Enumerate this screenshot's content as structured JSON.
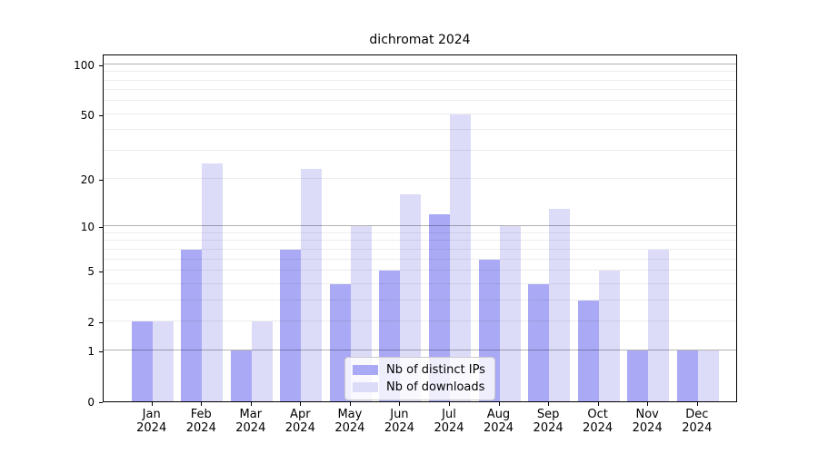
{
  "title": "dichromat 2024",
  "colors": {
    "distinct_ips": "#a9a9f5",
    "downloads": "#dcdcf9",
    "grid_strong": "rgba(0,0,0,0.30)",
    "grid_weak": "rgba(0,0,0,0.07)",
    "axis": "#000000"
  },
  "legend": {
    "items": [
      {
        "label": "Nb of distinct IPs",
        "color_key": "distinct_ips"
      },
      {
        "label": "Nb of downloads",
        "color_key": "downloads"
      }
    ]
  },
  "chart_data": {
    "type": "bar",
    "title": "dichromat 2024",
    "categories": [
      "Jan",
      "Feb",
      "Mar",
      "Apr",
      "May",
      "Jun",
      "Jul",
      "Aug",
      "Sep",
      "Oct",
      "Nov",
      "Dec"
    ],
    "category_year": "2024",
    "series": [
      {
        "name": "Nb of distinct IPs",
        "values": [
          2,
          7,
          1,
          7,
          4,
          5,
          12,
          6,
          4,
          3,
          1,
          1
        ]
      },
      {
        "name": "Nb of downloads",
        "values": [
          2,
          25,
          2,
          23,
          10,
          16,
          50,
          10,
          13,
          5,
          7,
          1
        ]
      }
    ],
    "yscale": "log1p",
    "ylim": [
      0,
      116
    ],
    "y_ticks": [
      0,
      1,
      2,
      5,
      10,
      20,
      50,
      100
    ],
    "y_gridlines_strong": [
      1,
      10,
      100
    ],
    "y_gridlines_weak": [
      2,
      5,
      20,
      50,
      3,
      4,
      6,
      7,
      8,
      9,
      30,
      40,
      60,
      70,
      80,
      90
    ],
    "grid": true,
    "legend_position": "lower center"
  }
}
